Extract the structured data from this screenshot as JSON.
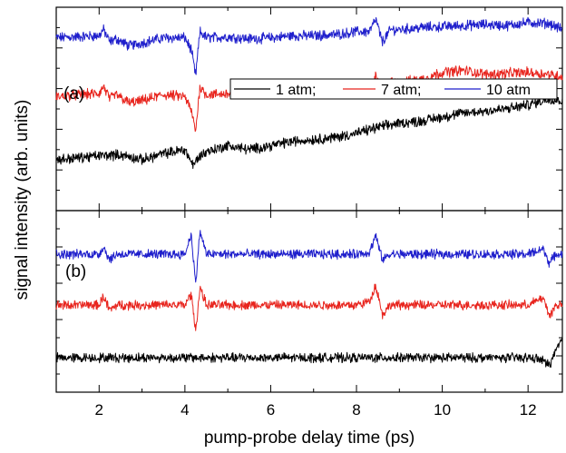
{
  "chart_data": {
    "type": "line",
    "xlabel": "pump-probe delay time (ps)",
    "ylabel": "signal intensity (arb. units)",
    "xlim": [
      1.0,
      12.8
    ],
    "x_ticks": [
      "2",
      "4",
      "6",
      "8",
      "10",
      "12"
    ],
    "x_tick_values": [
      2,
      4,
      6,
      8,
      10,
      12
    ],
    "y_ticks_labeled": false,
    "grid": false,
    "legend": {
      "placement": "top-right of panel (a)",
      "entries": [
        "1 atm;",
        "7 atm;",
        "10 atm"
      ],
      "colors": [
        "#000000",
        "#e8251e",
        "#1f1fcc"
      ]
    },
    "panels": [
      {
        "label": "(a)",
        "ylim": [
          0,
          10
        ],
        "series": [
          {
            "legend_entry": "10 atm",
            "color": "#1f1fcc",
            "x": [
              1.0,
              1.5,
              2.0,
              2.1,
              2.25,
              2.4,
              2.7,
              3.0,
              3.5,
              4.0,
              4.15,
              4.25,
              4.35,
              4.5,
              5.0,
              5.5,
              6.0,
              6.5,
              7.0,
              7.5,
              8.0,
              8.3,
              8.45,
              8.6,
              8.8,
              9.0,
              9.5,
              10.0,
              10.5,
              11.0,
              11.5,
              12.0,
              12.5,
              12.8
            ],
            "y": [
              8.5,
              8.55,
              8.6,
              8.9,
              8.3,
              8.45,
              8.1,
              8.25,
              8.5,
              8.5,
              7.9,
              6.6,
              8.8,
              8.5,
              8.55,
              8.45,
              8.5,
              8.6,
              8.6,
              8.65,
              8.8,
              8.8,
              9.4,
              8.3,
              8.9,
              8.9,
              9.0,
              9.05,
              9.1,
              9.15,
              9.1,
              9.25,
              9.2,
              8.9
            ]
          },
          {
            "legend_entry": "7 atm",
            "color": "#e8251e",
            "x": [
              1.0,
              1.5,
              2.0,
              2.1,
              2.25,
              2.4,
              2.7,
              3.0,
              3.5,
              4.0,
              4.15,
              4.25,
              4.35,
              4.5,
              5.0,
              5.5,
              6.0,
              6.5,
              7.0,
              7.5,
              8.0,
              8.3,
              8.45,
              8.6,
              8.8,
              9.0,
              9.5,
              10.0,
              10.5,
              11.0,
              11.5,
              12.0,
              12.5,
              12.8
            ],
            "y": [
              5.6,
              5.7,
              5.75,
              6.1,
              5.5,
              5.7,
              5.3,
              5.4,
              5.7,
              5.6,
              4.9,
              3.9,
              6.1,
              5.7,
              5.75,
              5.8,
              5.9,
              5.95,
              5.95,
              6.0,
              6.0,
              6.0,
              6.6,
              5.7,
              6.3,
              6.3,
              6.45,
              6.8,
              6.9,
              6.7,
              6.75,
              6.8,
              6.7,
              6.6
            ]
          },
          {
            "legend_entry": "1 atm",
            "color": "#000000",
            "x": [
              1.0,
              1.5,
              2.0,
              2.5,
              3.0,
              3.5,
              4.0,
              4.2,
              4.3,
              4.5,
              5.0,
              5.5,
              6.0,
              6.5,
              7.0,
              7.5,
              8.0,
              8.5,
              9.0,
              9.5,
              10.0,
              10.5,
              11.0,
              11.5,
              12.0,
              12.5,
              12.8
            ],
            "y": [
              2.5,
              2.6,
              2.7,
              2.75,
              2.5,
              2.8,
              3.0,
              2.2,
              2.6,
              2.9,
              3.2,
              3.0,
              3.2,
              3.4,
              3.5,
              3.6,
              3.8,
              4.1,
              4.3,
              4.4,
              4.6,
              4.8,
              4.9,
              5.0,
              5.2,
              5.5,
              5.4
            ]
          }
        ]
      },
      {
        "label": "(b)",
        "ylim": [
          0,
          10
        ],
        "series": [
          {
            "legend_entry": "10 atm",
            "color": "#1f1fcc",
            "x": [
              1.0,
              2.0,
              2.1,
              2.25,
              2.4,
              3.0,
              3.7,
              4.0,
              4.15,
              4.25,
              4.35,
              4.5,
              5.0,
              6.0,
              7.0,
              8.0,
              8.3,
              8.45,
              8.6,
              8.8,
              9.0,
              10.0,
              11.0,
              12.0,
              12.35,
              12.5,
              12.65,
              12.8
            ],
            "y": [
              7.6,
              7.6,
              8.0,
              7.3,
              7.6,
              7.6,
              7.6,
              7.6,
              8.7,
              5.9,
              8.9,
              7.6,
              7.6,
              7.6,
              7.6,
              7.6,
              7.7,
              8.6,
              7.3,
              7.6,
              7.6,
              7.6,
              7.6,
              7.6,
              7.9,
              7.1,
              7.6,
              7.6
            ]
          },
          {
            "legend_entry": "7 atm",
            "color": "#e8251e",
            "x": [
              1.0,
              2.0,
              2.1,
              2.25,
              2.4,
              3.0,
              3.7,
              4.0,
              4.15,
              4.25,
              4.35,
              4.5,
              5.0,
              6.0,
              7.0,
              8.0,
              8.3,
              8.45,
              8.6,
              8.8,
              9.0,
              10.0,
              11.0,
              12.0,
              12.35,
              12.5,
              12.65,
              12.8
            ],
            "y": [
              4.8,
              4.8,
              5.3,
              4.5,
              4.8,
              4.8,
              4.8,
              4.8,
              5.4,
              3.3,
              5.8,
              4.8,
              4.8,
              4.8,
              4.8,
              4.8,
              5.0,
              5.9,
              4.3,
              4.8,
              4.8,
              4.8,
              4.8,
              4.8,
              5.2,
              4.2,
              4.8,
              4.8
            ]
          },
          {
            "legend_entry": "1 atm",
            "color": "#000000",
            "x": [
              1.0,
              2.0,
              3.0,
              4.0,
              5.0,
              6.0,
              7.0,
              8.0,
              9.0,
              10.0,
              11.0,
              12.0,
              12.3,
              12.5,
              12.65,
              12.8
            ],
            "y": [
              1.9,
              1.9,
              1.9,
              1.9,
              1.9,
              1.9,
              1.9,
              1.9,
              1.9,
              1.9,
              1.9,
              1.9,
              1.8,
              1.5,
              2.3,
              2.9
            ]
          }
        ]
      }
    ]
  }
}
